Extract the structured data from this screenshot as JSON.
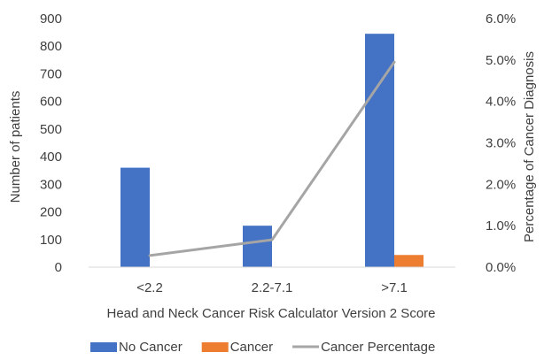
{
  "chart_data": {
    "type": "bar",
    "categories": [
      "<2.2",
      "2.2-7.1",
      ">7.1"
    ],
    "series": [
      {
        "name": "No Cancer",
        "type": "bar",
        "axis": "left",
        "color": "#4472C4",
        "values": [
          360,
          150,
          845
        ]
      },
      {
        "name": "Cancer",
        "type": "bar",
        "axis": "left",
        "color": "#ED7D31",
        "values": [
          1,
          1,
          44
        ]
      },
      {
        "name": "Cancer Percentage",
        "type": "line",
        "axis": "right",
        "color": "#A5A5A5",
        "values": [
          0.28,
          0.66,
          4.95
        ]
      }
    ],
    "xlabel": "Head and Neck Cancer Risk Calculator Version 2 Score",
    "ylabel": "Number of patients",
    "y2label": "Percentage of Cancer Diagnosis",
    "ylim": [
      0,
      900
    ],
    "yticks": [
      "0",
      "100",
      "200",
      "300",
      "400",
      "500",
      "600",
      "700",
      "800",
      "900"
    ],
    "y2lim": [
      0,
      6
    ],
    "y2ticks": [
      "0.0%",
      "1.0%",
      "2.0%",
      "3.0%",
      "4.0%",
      "5.0%",
      "6.0%"
    ],
    "grid": false,
    "legend_position": "bottom"
  }
}
